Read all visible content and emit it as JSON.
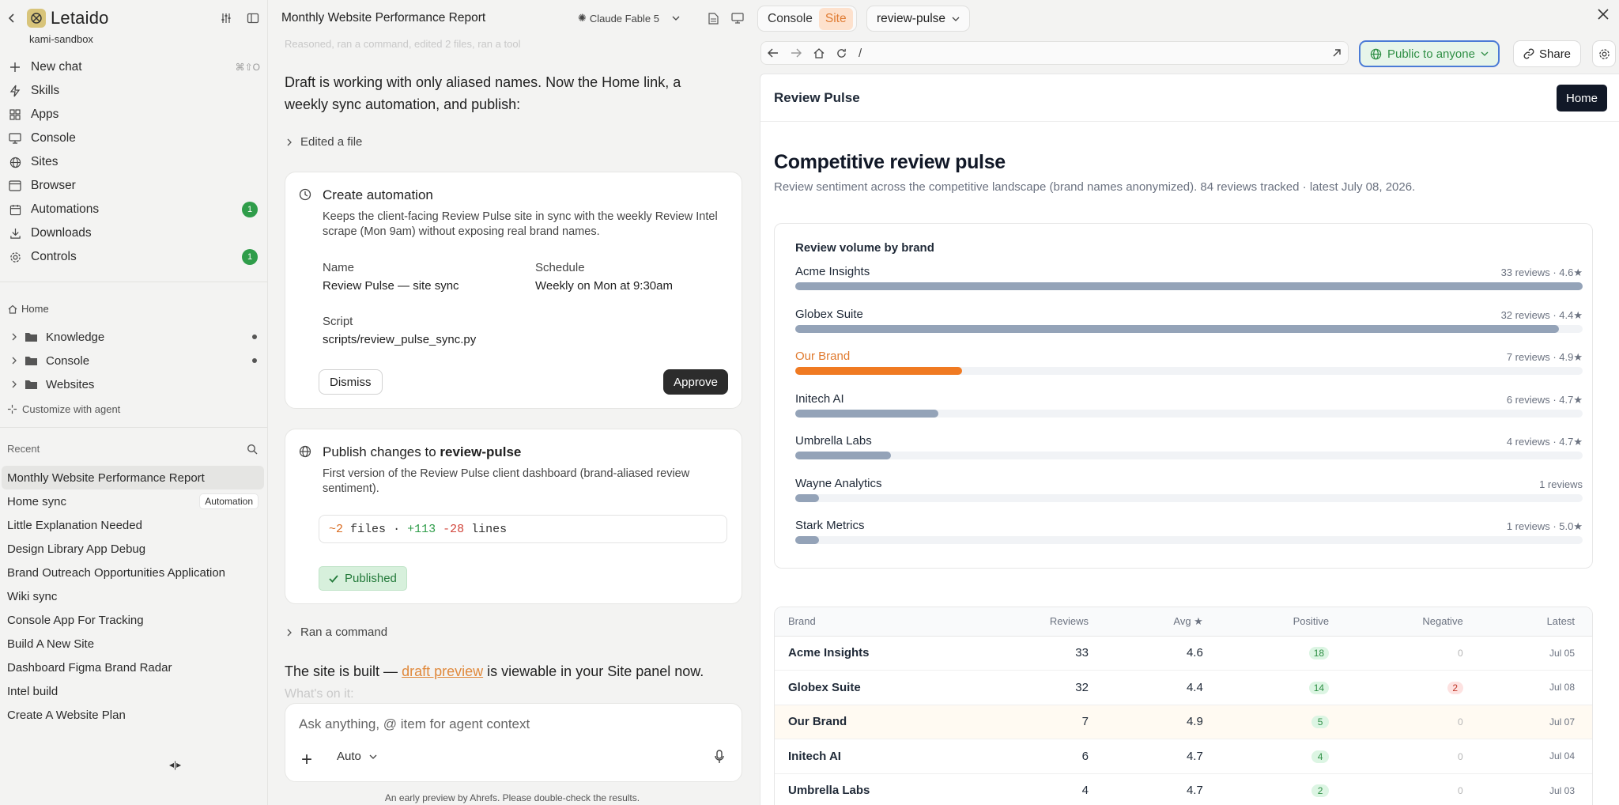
{
  "sidebar": {
    "app_name": "Letaido",
    "workspace": "kami-sandbox",
    "nav": [
      {
        "label": "New chat",
        "icon": "plus-icon",
        "shortcut": "⌘⇧O"
      },
      {
        "label": "Skills",
        "icon": "bolt-icon"
      },
      {
        "label": "Apps",
        "icon": "grid-icon"
      },
      {
        "label": "Console",
        "icon": "monitor-icon"
      },
      {
        "label": "Sites",
        "icon": "globe-icon"
      },
      {
        "label": "Browser",
        "icon": "browser-icon"
      },
      {
        "label": "Automations",
        "icon": "calendar-icon",
        "badge": "1"
      },
      {
        "label": "Downloads",
        "icon": "download-icon"
      },
      {
        "label": "Controls",
        "icon": "gear-icon",
        "badge": "1"
      }
    ],
    "home_label": "Home",
    "tree": [
      {
        "label": "Knowledge"
      },
      {
        "label": "Console"
      },
      {
        "label": "Websites"
      }
    ],
    "customize_label": "Customize with agent",
    "recent_label": "Recent",
    "recent": [
      {
        "label": "Monthly Website Performance Report"
      },
      {
        "label": "Home sync",
        "tag": "Automation"
      },
      {
        "label": "Little Explanation Needed"
      },
      {
        "label": "Design Library App Debug"
      },
      {
        "label": "Brand Outreach Opportunities Application"
      },
      {
        "label": "Wiki sync"
      },
      {
        "label": "Console App For Tracking"
      },
      {
        "label": "Build A New Site"
      },
      {
        "label": "Dashboard Figma Brand Radar"
      },
      {
        "label": "Intel build"
      },
      {
        "label": "Create A Website Plan"
      }
    ]
  },
  "chat": {
    "title": "Monthly Website Performance Report",
    "model": "Claude Fable 5",
    "faded_text": "Reasoned, ran a command, edited 2 files, ran a tool",
    "intro": "Draft is working with only aliased names. Now the Home link, a weekly sync automation, and publish:",
    "edited_label": "Edited a file",
    "automation": {
      "title": "Create automation",
      "desc": "Keeps the client-facing Review Pulse site in sync with the weekly Review Intel scrape (Mon 9am) without exposing real brand names.",
      "name_label": "Name",
      "name_value": "Review Pulse — site sync",
      "schedule_label": "Schedule",
      "schedule_value": "Weekly on Mon at 9:30am",
      "script_label": "Script",
      "script_value": "scripts/review_pulse_sync.py",
      "dismiss": "Dismiss",
      "approve": "Approve"
    },
    "publish": {
      "title_prefix": "Publish changes to",
      "title_target": "review-pulse",
      "desc": "First version of the Review Pulse client dashboard (brand-aliased review sentiment).",
      "diff_files": "~2",
      "diff_files_word": "files",
      "diff_sep": "·",
      "diff_add": "+113",
      "diff_del": "-28",
      "diff_lines_word": "lines",
      "status": "Published"
    },
    "ran_label": "Ran a command",
    "outro_prefix": "The site is built —",
    "outro_link": "draft preview",
    "outro_suffix": "is viewable in your Site panel now.",
    "outro_faded": "What's on it:",
    "input_placeholder": "Ask anything, @ item for agent context",
    "mode": "Auto",
    "footnote": "An early preview by Ahrefs. Please double-check the results."
  },
  "panel": {
    "tabs": [
      "Console",
      "Site"
    ],
    "active_tab": "Site",
    "repo": "review-pulse",
    "url_path": "/",
    "public_label": "Public to anyone",
    "share_label": "Share",
    "site": {
      "name": "Review Pulse",
      "home_button": "Home",
      "heading": "Competitive review pulse",
      "subtitle": "Review sentiment across the competitive landscape (brand names anonymized). 84 reviews tracked · latest July 08, 2026.",
      "chart_title": "Review volume by brand",
      "table_headers": [
        "Brand",
        "Reviews",
        "Avg ★",
        "Positive",
        "Negative",
        "Latest"
      ],
      "table_rows": [
        {
          "brand": "Acme Insights",
          "reviews": "33",
          "avg": "4.6",
          "positive": "18",
          "negative": "0",
          "latest": "Jul 05"
        },
        {
          "brand": "Globex Suite",
          "reviews": "32",
          "avg": "4.4",
          "positive": "14",
          "negative": "2",
          "latest": "Jul 08"
        },
        {
          "brand": "Our Brand",
          "reviews": "7",
          "avg": "4.9",
          "positive": "5",
          "negative": "0",
          "latest": "Jul 07"
        },
        {
          "brand": "Initech AI",
          "reviews": "6",
          "avg": "4.7",
          "positive": "4",
          "negative": "0",
          "latest": "Jul 04"
        },
        {
          "brand": "Umbrella Labs",
          "reviews": "4",
          "avg": "4.7",
          "positive": "2",
          "negative": "0",
          "latest": "Jul 03"
        }
      ]
    }
  },
  "chart_data": {
    "type": "bar",
    "title": "Review volume by brand",
    "categories": [
      "Acme Insights",
      "Globex Suite",
      "Our Brand",
      "Initech AI",
      "Umbrella Labs",
      "Wayne Analytics",
      "Stark Metrics"
    ],
    "values": [
      33,
      32,
      7,
      6,
      4,
      1,
      1
    ],
    "labels": [
      "33 reviews · 4.6★",
      "32 reviews · 4.4★",
      "7 reviews · 4.9★",
      "6 reviews · 4.7★",
      "4 reviews · 4.7★",
      "1 reviews",
      "1 reviews · 5.0★"
    ],
    "highlight": "Our Brand",
    "colors": {
      "default": "#94a3b8",
      "highlight": "#f07a22"
    }
  }
}
